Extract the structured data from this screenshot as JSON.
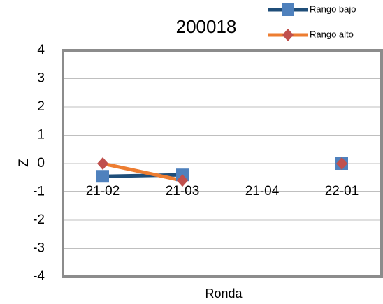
{
  "chart_data": {
    "type": "line",
    "title": "200018",
    "x_label": "Ronda",
    "y_label": "Z",
    "categories": [
      "21-02",
      "21-03",
      "21-04",
      "22-01"
    ],
    "series": [
      {
        "name": "Rango bajo",
        "color": "#1f4e79",
        "marker": "square",
        "marker_color": "#4f81bd",
        "values": [
          -0.45,
          -0.4,
          null,
          0
        ]
      },
      {
        "name": "Rango alto",
        "color": "#ed7d31",
        "marker": "diamond",
        "marker_color": "#c0504d",
        "values": [
          0,
          -0.6,
          null,
          0
        ]
      }
    ],
    "ylim": [
      -4,
      4
    ],
    "yticks": [
      -4,
      -3,
      -2,
      -1,
      0,
      1,
      2,
      3,
      4
    ],
    "grid": true
  }
}
